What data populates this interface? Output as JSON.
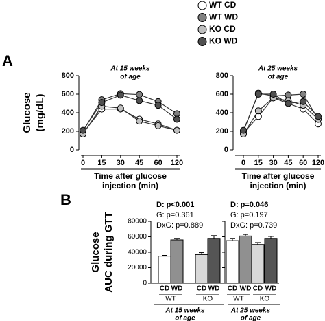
{
  "legend": [
    "WT CD",
    "WT WD",
    "KO CD",
    "KO WD"
  ],
  "panel_labels": [
    "A",
    "B"
  ],
  "chart_data": [
    {
      "type": "line",
      "subtitle": [
        "At 15 weeks",
        "of age"
      ],
      "y_label": [
        "Glucose",
        "(mg/dL)"
      ],
      "x_label": [
        "Time after glucose",
        "injection (min)"
      ],
      "categories": [
        "0",
        "15",
        "30",
        "45",
        "60",
        "120"
      ],
      "ylim": [
        0,
        800
      ],
      "yticks": [
        0,
        200,
        400,
        600,
        800
      ],
      "series": [
        {
          "name": "WT CD",
          "color": "#ffffff",
          "values": [
            180,
            440,
            440,
            330,
            280,
            210
          ]
        },
        {
          "name": "WT WD",
          "color": "#808080",
          "values": [
            200,
            540,
            605,
            595,
            520,
            390
          ]
        },
        {
          "name": "KO CD",
          "color": "#c0c0c0",
          "values": [
            170,
            470,
            450,
            310,
            260,
            210
          ]
        },
        {
          "name": "KO WD",
          "color": "#505050",
          "values": [
            210,
            510,
            590,
            530,
            480,
            330
          ]
        }
      ]
    },
    {
      "type": "line",
      "subtitle": [
        "At 25 weeks",
        "of age"
      ],
      "x_label": [
        "Time after glucose",
        "injection (min)"
      ],
      "categories": [
        "0",
        "15",
        "30",
        "45",
        "60",
        "120"
      ],
      "ylim": [
        0,
        800
      ],
      "yticks": [
        0,
        200,
        400,
        600,
        800
      ],
      "series": [
        {
          "name": "WT CD",
          "color": "#ffffff",
          "values": [
            180,
            360,
            560,
            500,
            440,
            280
          ]
        },
        {
          "name": "WT WD",
          "color": "#808080",
          "values": [
            200,
            610,
            580,
            590,
            600,
            330
          ]
        },
        {
          "name": "KO CD",
          "color": "#c0c0c0",
          "values": [
            170,
            420,
            560,
            530,
            480,
            330
          ]
        },
        {
          "name": "KO WD",
          "color": "#505050",
          "values": [
            210,
            600,
            600,
            500,
            520,
            360
          ]
        }
      ]
    },
    {
      "type": "bar",
      "subtitle": [
        "At 15 weeks",
        "of age"
      ],
      "y_label": [
        "Glucose",
        "AUC during GTT"
      ],
      "stats": [
        "D: p<0.001",
        "G: p=0.361",
        "DxG: p=0.889"
      ],
      "categories": [
        "CD",
        "WD",
        "CD",
        "WD"
      ],
      "groups": [
        "WT",
        "KO"
      ],
      "colors": [
        "#ffffff",
        "#909090",
        "#d8d8d8",
        "#555555"
      ],
      "values": [
        35000,
        56000,
        37000,
        58000
      ],
      "errors": [
        1000,
        2000,
        2500,
        3500
      ],
      "ylim": [
        0,
        80000
      ],
      "yticks": [
        0,
        20000,
        40000,
        60000,
        80000
      ],
      "tick_labels": true
    },
    {
      "type": "bar",
      "subtitle": [
        "At 25 weeks",
        "of age"
      ],
      "stats": [
        "D: p=0.046",
        "G: p=0.197",
        "DxG: p=0.739"
      ],
      "categories": [
        "CD",
        "WD",
        "CD",
        "WD"
      ],
      "groups": [
        "WT",
        "KO"
      ],
      "colors": [
        "#ffffff",
        "#909090",
        "#d8d8d8",
        "#555555"
      ],
      "values": [
        55000,
        61000,
        50000,
        58000
      ],
      "errors": [
        3000,
        2000,
        2500,
        2500
      ],
      "ylim": [
        0,
        80000
      ],
      "yticks": [
        0,
        20000,
        40000,
        60000,
        80000
      ],
      "tick_labels": false
    }
  ]
}
